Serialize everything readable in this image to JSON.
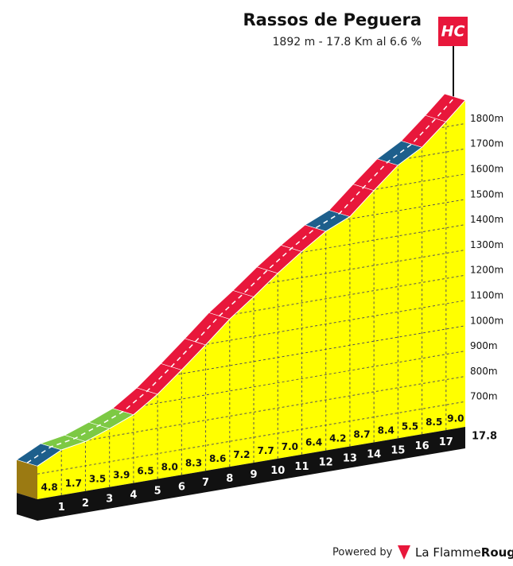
{
  "chart_data": {
    "type": "profile",
    "title": "Rassos de Peguera",
    "subtitle": "1892 m - 17.8 Km al 6.6 %",
    "category_badge": "HC",
    "x": [
      0,
      1,
      2,
      3,
      4,
      5,
      6,
      7,
      8,
      9,
      10,
      11,
      12,
      13,
      14,
      15,
      16,
      17,
      17.8
    ],
    "elevations": [
      731,
      779,
      796,
      831,
      870,
      935,
      1015,
      1098,
      1184,
      1256,
      1333,
      1403,
      1467,
      1509,
      1596,
      1680,
      1735,
      1820,
      1892
    ],
    "gradients": [
      4.8,
      1.7,
      3.5,
      3.9,
      6.5,
      8.0,
      8.3,
      8.6,
      7.2,
      7.7,
      7.0,
      6.4,
      4.2,
      8.7,
      8.4,
      5.5,
      8.5,
      9.0
    ],
    "value_labels": [
      "4.8",
      "1.7",
      "3.5",
      "3.9",
      "6.5",
      "8.0",
      "8.3",
      "8.6",
      "7.2",
      "7.7",
      "7.0",
      "6.4",
      "4.2",
      "8.7",
      "8.4",
      "5.5",
      "8.5",
      "9.0"
    ],
    "colors": [
      "#1d5f8c",
      "#7dc944",
      "#7dc944",
      "#7dc944",
      "#e8173b",
      "#e8173b",
      "#e8173b",
      "#e8173b",
      "#e8173b",
      "#e8173b",
      "#e8173b",
      "#e8173b",
      "#1d5f8c",
      "#e8173b",
      "#e8173b",
      "#1d5f8c",
      "#e8173b",
      "#e8173b"
    ],
    "face_color": "#ffff00",
    "xlim": [
      0,
      17.8
    ],
    "xticks": [
      1,
      2,
      3,
      4,
      5,
      6,
      7,
      8,
      9,
      10,
      11,
      12,
      13,
      14,
      15,
      16,
      17,
      17.8
    ],
    "ylim": [
      600,
      1900
    ],
    "yticks": [
      {
        "value": 700,
        "label": "700m"
      },
      {
        "value": 800,
        "label": "800m"
      },
      {
        "value": 900,
        "label": "900m"
      },
      {
        "value": 1000,
        "label": "1000m"
      },
      {
        "value": 1100,
        "label": "1100m"
      },
      {
        "value": 1200,
        "label": "1200m"
      },
      {
        "value": 1300,
        "label": "1300m"
      },
      {
        "value": 1400,
        "label": "1400m"
      },
      {
        "value": 1500,
        "label": "1500m"
      },
      {
        "value": 1600,
        "label": "1600m"
      },
      {
        "value": 1700,
        "label": "1700m"
      },
      {
        "value": 1800,
        "label": "1800m"
      }
    ],
    "grid": true
  },
  "footer": {
    "powered": "Powered by",
    "brand_1": "La Flamme",
    "brand_2": "Rouge"
  }
}
